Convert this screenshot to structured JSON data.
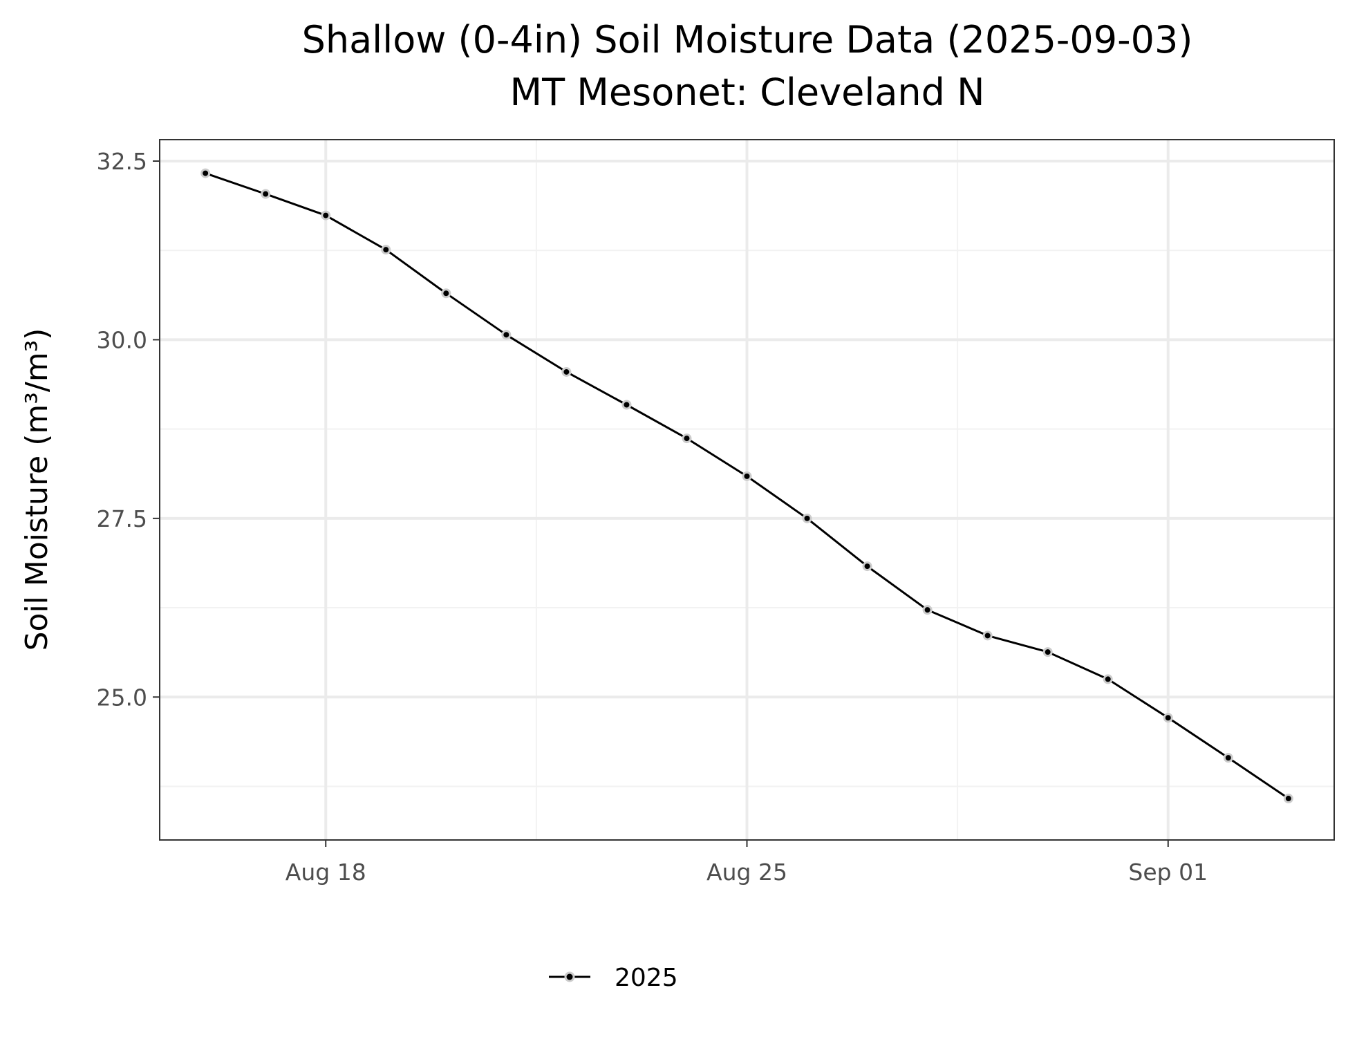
{
  "chart_data": {
    "type": "line",
    "title": "Shallow (0-4in) Soil Moisture Data (2025-09-03)",
    "subtitle": "MT Mesonet: Cleveland N",
    "xlabel": "",
    "ylabel": "Soil Moisture (m³/m³)",
    "x_ticks": [
      {
        "date": "2025-08-18",
        "label": "Aug 18"
      },
      {
        "date": "2025-08-25",
        "label": "Aug 25"
      },
      {
        "date": "2025-09-01",
        "label": "Sep 01"
      }
    ],
    "y_ticks": [
      {
        "value": 25.0,
        "label": "25.0"
      },
      {
        "value": 27.5,
        "label": "27.5"
      },
      {
        "value": 30.0,
        "label": "30.0"
      },
      {
        "value": 32.5,
        "label": "32.5"
      }
    ],
    "xlim": [
      "2025-08-15",
      "2025-09-04"
    ],
    "ylim": [
      23.0,
      32.8
    ],
    "grid": true,
    "legend_position": "bottom",
    "colors": {
      "line": "#000000",
      "point_outline": "#cccccc",
      "grid_major": "#ebebeb",
      "grid_minor": "#f2f2f2",
      "panel_border": "#333333"
    },
    "series": [
      {
        "name": "2025",
        "x": [
          "2025-08-16",
          "2025-08-17",
          "2025-08-18",
          "2025-08-19",
          "2025-08-20",
          "2025-08-21",
          "2025-08-22",
          "2025-08-23",
          "2025-08-24",
          "2025-08-25",
          "2025-08-26",
          "2025-08-27",
          "2025-08-28",
          "2025-08-29",
          "2025-08-30",
          "2025-08-31",
          "2025-09-01",
          "2025-09-02",
          "2025-09-03"
        ],
        "values": [
          32.33,
          32.04,
          31.74,
          31.26,
          30.65,
          30.07,
          29.55,
          29.09,
          28.62,
          28.09,
          27.5,
          26.83,
          26.22,
          25.86,
          25.63,
          25.25,
          24.71,
          24.15,
          23.58
        ]
      }
    ]
  }
}
